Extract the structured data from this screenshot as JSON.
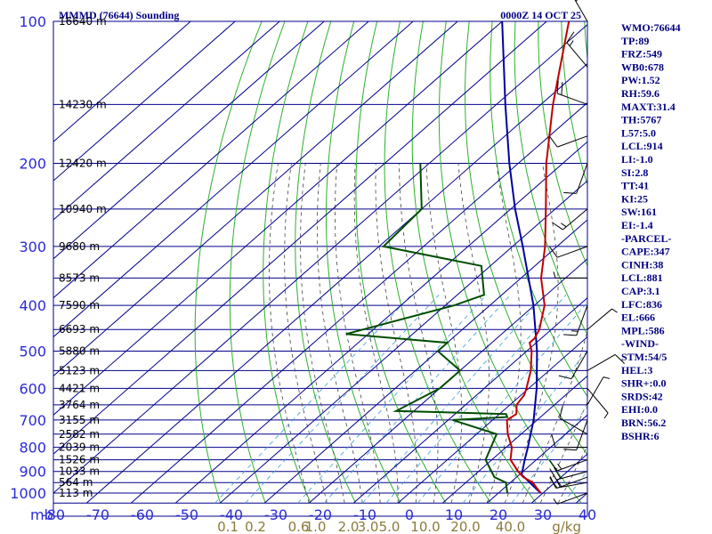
{
  "chart_data": {
    "type": "skew-t",
    "title_left": "MMMD (76644) Sounding",
    "title_right": "0000Z 14 OCT 25",
    "pressure_unit_label": "mb",
    "pressure_levels": [
      100,
      200,
      300,
      400,
      500,
      600,
      700,
      800,
      900,
      1000
    ],
    "pressure_labels": [
      "100",
      "200",
      "300",
      "400",
      "500",
      "600",
      "700",
      "800",
      "900",
      "1000"
    ],
    "temperature_ticks": [
      -80,
      -70,
      -60,
      -50,
      -40,
      -30,
      -20,
      -10,
      0,
      10,
      20,
      30,
      40
    ],
    "temperature_tick_labels": [
      "-80",
      "-70",
      "-60",
      "-50",
      "-40",
      "-30",
      "-20",
      "-10",
      "0",
      "10",
      "20",
      "30",
      "40"
    ],
    "mixing_ratio_labels": [
      {
        "text": "0.1",
        "t_at_bottom": -40.8
      },
      {
        "text": "0.2",
        "t_at_bottom": -34.6
      },
      {
        "text": "0.6",
        "t_at_bottom": -24.9
      },
      {
        "text": "1.0",
        "t_at_bottom": -21.1
      },
      {
        "text": "2.0",
        "t_at_bottom": -13.7
      },
      {
        "text": "3.0",
        "t_at_bottom": -9.3
      },
      {
        "text": "5.0",
        "t_at_bottom": -4.5
      },
      {
        "text": "10.0",
        "t_at_bottom": 3.6
      },
      {
        "text": "20.0",
        "t_at_bottom": 12.6
      },
      {
        "text": "40.0",
        "t_at_bottom": 22.7
      }
    ],
    "mixing_ratio_unit": "g/kg",
    "height_labels": [
      {
        "p": 100,
        "text": "16640 m"
      },
      {
        "p": 150,
        "text": "14230 m"
      },
      {
        "p": 200,
        "text": "12420 m"
      },
      {
        "p": 250,
        "text": "10940 m"
      },
      {
        "p": 300,
        "text": "9680 m"
      },
      {
        "p": 350,
        "text": "8573 m"
      },
      {
        "p": 400,
        "text": "7590 m"
      },
      {
        "p": 450,
        "text": "6693 m"
      },
      {
        "p": 500,
        "text": "5880 m"
      },
      {
        "p": 550,
        "text": "5123 m"
      },
      {
        "p": 600,
        "text": "4421 m"
      },
      {
        "p": 650,
        "text": "3764 m"
      },
      {
        "p": 700,
        "text": "3155 m"
      },
      {
        "p": 750,
        "text": "2582 m"
      },
      {
        "p": 800,
        "text": "2039 m"
      },
      {
        "p": 850,
        "text": "1526 m"
      },
      {
        "p": 900,
        "text": "1033 m"
      },
      {
        "p": 950,
        "text": "564 m"
      },
      {
        "p": 1000,
        "text": "113 m"
      }
    ],
    "temperature_profile": [
      {
        "p": 1000,
        "t": 29.5
      },
      {
        "p": 950,
        "t": 25.0
      },
      {
        "p": 925,
        "t": 21.5
      },
      {
        "p": 900,
        "t": 18.9
      },
      {
        "p": 850,
        "t": 14.2
      },
      {
        "p": 800,
        "t": 11.3
      },
      {
        "p": 750,
        "t": 7.0
      },
      {
        "p": 700,
        "t": 3.2
      },
      {
        "p": 680,
        "t": 3.8
      },
      {
        "p": 650,
        "t": 1.5
      },
      {
        "p": 620,
        "t": 0.7
      },
      {
        "p": 600,
        "t": -0.5
      },
      {
        "p": 550,
        "t": -4.1
      },
      {
        "p": 500,
        "t": -8.9
      },
      {
        "p": 480,
        "t": -11.5
      },
      {
        "p": 470,
        "t": -11.5
      },
      {
        "p": 450,
        "t": -12.7
      },
      {
        "p": 400,
        "t": -17.7
      },
      {
        "p": 350,
        "t": -25.5
      },
      {
        "p": 300,
        "t": -32.7
      },
      {
        "p": 250,
        "t": -42.1
      },
      {
        "p": 200,
        "t": -53.7
      },
      {
        "p": 150,
        "t": -67.3
      },
      {
        "p": 100,
        "t": -85.0
      }
    ],
    "dewpoint_profile": [
      {
        "p": 1000,
        "t": 22.0
      },
      {
        "p": 950,
        "t": 19.0
      },
      {
        "p": 925,
        "t": 15.0
      },
      {
        "p": 850,
        "t": 8.6
      },
      {
        "p": 750,
        "t": 4.5
      },
      {
        "p": 700,
        "t": -9.0
      },
      {
        "p": 690,
        "t": 2.5
      },
      {
        "p": 680,
        "t": 1.5
      },
      {
        "p": 670,
        "t": -24.0
      },
      {
        "p": 600,
        "t": -20.0
      },
      {
        "p": 550,
        "t": -20.0
      },
      {
        "p": 500,
        "t": -30.0
      },
      {
        "p": 480,
        "t": -30.0
      },
      {
        "p": 460,
        "t": -55.0
      },
      {
        "p": 400,
        "t": -38.0
      },
      {
        "p": 380,
        "t": -34.0
      },
      {
        "p": 330,
        "t": -42.0
      },
      {
        "p": 300,
        "t": -69.0
      },
      {
        "p": 250,
        "t": -70.0
      },
      {
        "p": 200,
        "t": -82.0
      }
    ],
    "parcel_profile": [
      {
        "p": 1000,
        "t": 29.5
      },
      {
        "p": 914,
        "t": 20.5
      },
      {
        "p": 850,
        "t": 17.4
      },
      {
        "p": 800,
        "t": 14.9
      },
      {
        "p": 700,
        "t": 9.2
      },
      {
        "p": 600,
        "t": 1.8
      },
      {
        "p": 500,
        "t": -7.7
      },
      {
        "p": 400,
        "t": -20.2
      },
      {
        "p": 300,
        "t": -37.7
      },
      {
        "p": 250,
        "t": -49.0
      },
      {
        "p": 200,
        "t": -62.0
      },
      {
        "p": 150,
        "t": -78.0
      },
      {
        "p": 100,
        "t": -100.0
      }
    ],
    "wind_barbs": [
      {
        "p": 1000,
        "dir": 250,
        "spd": 5
      },
      {
        "p": 950,
        "dir": 260,
        "spd": 15
      },
      {
        "p": 925,
        "dir": 250,
        "spd": 20
      },
      {
        "p": 900,
        "dir": 255,
        "spd": 20
      },
      {
        "p": 850,
        "dir": 250,
        "spd": 15
      },
      {
        "p": 800,
        "dir": 270,
        "spd": 10
      },
      {
        "p": 750,
        "dir": 300,
        "spd": 10
      },
      {
        "p": 700,
        "dir": 200,
        "spd": 10
      },
      {
        "p": 650,
        "dir": 30,
        "spd": 5
      },
      {
        "p": 600,
        "dir": 140,
        "spd": 5
      },
      {
        "p": 550,
        "dir": 60,
        "spd": 10
      },
      {
        "p": 500,
        "dir": 210,
        "spd": 10
      },
      {
        "p": 450,
        "dir": 50,
        "spd": 5
      },
      {
        "p": 400,
        "dir": 200,
        "spd": 15
      },
      {
        "p": 350,
        "dir": 270,
        "spd": 5
      },
      {
        "p": 300,
        "dir": 250,
        "spd": 10
      },
      {
        "p": 250,
        "dir": 230,
        "spd": 15
      },
      {
        "p": 200,
        "dir": 200,
        "spd": 10
      },
      {
        "p": 175,
        "dir": 250,
        "spd": 10
      },
      {
        "p": 150,
        "dir": 290,
        "spd": 20
      },
      {
        "p": 125,
        "dir": 320,
        "spd": 15
      },
      {
        "p": 100,
        "dir": 330,
        "spd": 30
      }
    ],
    "indices": [
      "WMO:76644",
      "TP:89",
      "FRZ:549",
      "WB0:678",
      "PW:1.52",
      "RH:59.6",
      "MAXT:31.4",
      "TH:5767",
      "L57:5.0",
      "LCL:914",
      "LI:-1.0",
      "SI:2.8",
      "TT:41",
      "KI:25",
      "SW:161",
      "EI:-1.4",
      "-PARCEL-",
      "CAPE:347",
      "CINH:38",
      "LCL:881",
      "CAP:3.1",
      "LFC:836",
      "EL:666",
      "MPL:586",
      "-WIND-",
      "STM:54/5",
      "HEL:3",
      "SHR+:0.0",
      "SRDS:42",
      "EHI:0.0",
      "BRN:56.2",
      "BSHR:6"
    ],
    "colors": {
      "isobar": "#00008b",
      "isotherm": "#00008b",
      "dry_adiabat": "#2db02d",
      "moist_adiabat": "#444444",
      "mixing_ratio": "#3aa0d8",
      "temperature": "#c00000",
      "dewpoint": "#004d00",
      "parcel": "#0000a0",
      "barb": "#000000",
      "axis_text": "#2b2bd6",
      "mixing_text": "#8a7a3a",
      "header_text": "#000080"
    }
  }
}
